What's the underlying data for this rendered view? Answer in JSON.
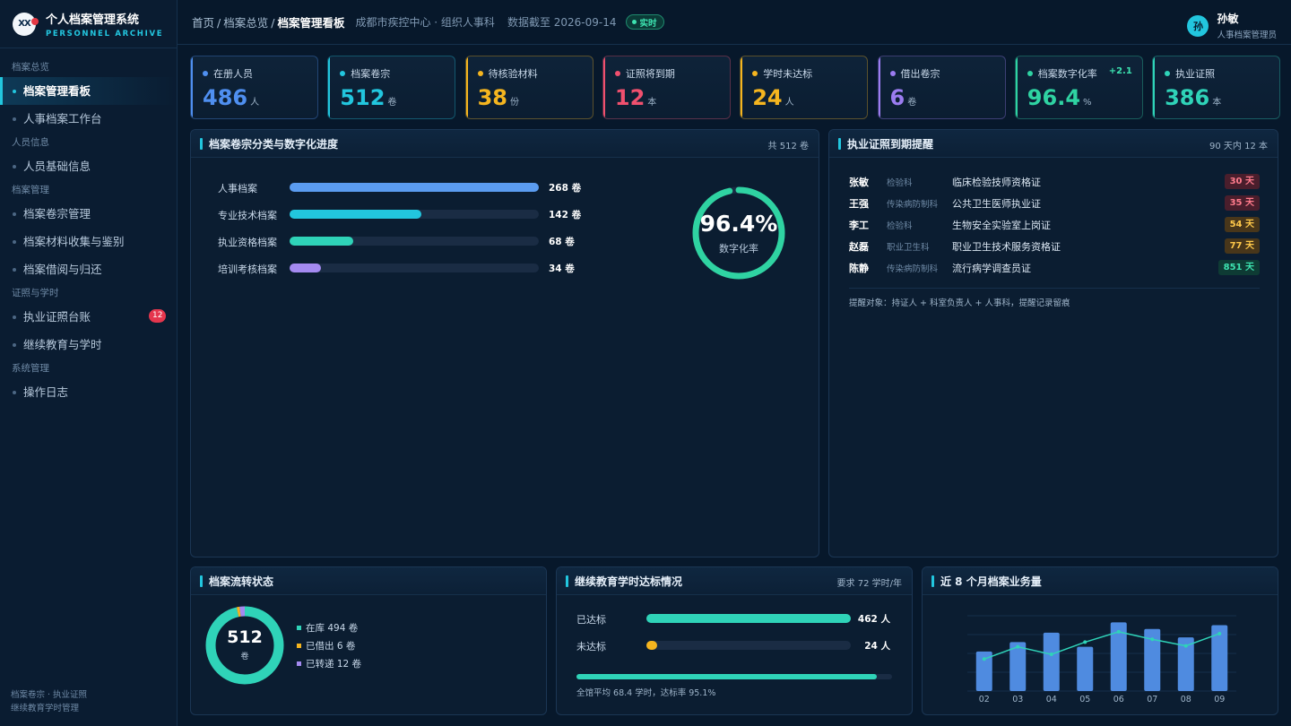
{
  "brand": {
    "title": "个人档案管理系统",
    "subtitle": "PERSONNEL ARCHIVE",
    "logo_text": "XX"
  },
  "nav": {
    "groups": [
      {
        "label": "档案总览",
        "items": [
          {
            "label": "档案管理看板",
            "active": true
          },
          {
            "label": "人事档案工作台"
          }
        ]
      },
      {
        "label": "人员信息",
        "items": [
          {
            "label": "人员基础信息"
          }
        ]
      },
      {
        "label": "档案管理",
        "items": [
          {
            "label": "档案卷宗管理"
          },
          {
            "label": "档案材料收集与鉴别"
          },
          {
            "label": "档案借阅与归还"
          }
        ]
      },
      {
        "label": "证照与学时",
        "items": [
          {
            "label": "执业证照台账",
            "badge": "12"
          },
          {
            "label": "继续教育与学时"
          }
        ]
      },
      {
        "label": "系统管理",
        "items": [
          {
            "label": "操作日志"
          }
        ]
      }
    ],
    "footer_line1": "档案卷宗 · 执业证照",
    "footer_line2": "继续教育学时管理"
  },
  "topbar": {
    "crumb_home": "首页",
    "crumb_mid": "档案总览",
    "crumb_current": "档案管理看板",
    "sep": "/",
    "org": "成都市疾控中心 · 组织人事科",
    "as_of": "数据截至 2026-09-14",
    "live": "实时"
  },
  "user": {
    "avatar": "孙",
    "name": "孙敏",
    "role": "人事档案管理员"
  },
  "kpis": [
    {
      "label": "在册人员",
      "value": "486",
      "unit": "人",
      "color": "#4f8ff0"
    },
    {
      "label": "档案卷宗",
      "value": "512",
      "unit": "卷",
      "color": "#22c6de"
    },
    {
      "label": "待核验材料",
      "value": "38",
      "unit": "份",
      "color": "#f5b51f"
    },
    {
      "label": "证照将到期",
      "value": "12",
      "unit": "本",
      "color": "#f0506e"
    },
    {
      "label": "学时未达标",
      "value": "24",
      "unit": "人",
      "color": "#f5b51f"
    },
    {
      "label": "借出卷宗",
      "value": "6",
      "unit": "卷",
      "color": "#9b7cf0"
    },
    {
      "label": "档案数字化率",
      "value": "96.4",
      "unit": "%",
      "color": "#2fd3a2",
      "delta": "+2.1"
    },
    {
      "label": "执业证照",
      "value": "386",
      "unit": "本",
      "color": "#2fd3b8"
    }
  ],
  "categories_panel": {
    "title": "档案卷宗分类与数字化进度",
    "total": "共 512 卷",
    "items": [
      {
        "name": "人事档案",
        "value": 268,
        "label": "268 卷",
        "color": "#5b9cf0"
      },
      {
        "name": "专业技术档案",
        "value": 142,
        "label": "142 卷",
        "color": "#22c6de"
      },
      {
        "name": "执业资格档案",
        "value": 68,
        "label": "68 卷",
        "color": "#2fd3b8"
      },
      {
        "name": "培训考核档案",
        "value": 34,
        "label": "34 卷",
        "color": "#a48af0"
      }
    ],
    "max": 268,
    "ring_value": 96.4,
    "ring_pct": "96.4%",
    "ring_label": "数字化率"
  },
  "license_panel": {
    "title": "执业证照到期提醒",
    "summary": "90 天内 12 本",
    "rows": [
      {
        "name": "张敏",
        "dept": "检验科",
        "cert": "临床检验技师资格证",
        "days": "30 天",
        "level": "red"
      },
      {
        "name": "王强",
        "dept": "传染病防制科",
        "cert": "公共卫生医师执业证",
        "days": "35 天",
        "level": "red"
      },
      {
        "name": "李工",
        "dept": "检验科",
        "cert": "生物安全实验室上岗证",
        "days": "54 天",
        "level": "amber"
      },
      {
        "name": "赵磊",
        "dept": "职业卫生科",
        "cert": "职业卫生技术服务资格证",
        "days": "77 天",
        "level": "amber"
      },
      {
        "name": "陈静",
        "dept": "传染病防制科",
        "cert": "流行病学调查员证",
        "days": "851 天",
        "level": "green"
      }
    ],
    "note": "提醒对象：持证人 + 科室负责人 + 人事科，提醒记录留痕"
  },
  "flow_panel": {
    "title": "档案流转状态",
    "total": "512",
    "unit": "卷",
    "segments": [
      {
        "label": "在库 494 卷",
        "value": 494,
        "color": "#2fd3b8"
      },
      {
        "label": "已借出 6 卷",
        "value": 6,
        "color": "#f5b51f"
      },
      {
        "label": "已转递 12 卷",
        "value": 12,
        "color": "#a48af0"
      }
    ]
  },
  "ce_panel": {
    "title": "继续教育学时达标情况",
    "requirement": "要求 72 学时/年",
    "rows": [
      {
        "name": "已达标",
        "value": 462,
        "label": "462 人",
        "color": "#2fd3b8"
      },
      {
        "name": "未达标",
        "value": 24,
        "label": "24 人",
        "color": "#f5b51f"
      }
    ],
    "max": 462,
    "rate": 95.1,
    "note": "全馆平均 68.4 学时，达标率 95.1%"
  },
  "biz_panel": {
    "title": "近 8 个月档案业务量",
    "chart_data": {
      "type": "bar",
      "categories": [
        "02",
        "03",
        "04",
        "05",
        "06",
        "07",
        "08",
        "09"
      ],
      "series": [
        {
          "type": "bar",
          "values": [
            42,
            52,
            62,
            47,
            73,
            66,
            57,
            70
          ],
          "color": "#4f8be0"
        },
        {
          "type": "line",
          "values": [
            34,
            47,
            39,
            52,
            63,
            55,
            48,
            61
          ],
          "color": "#2fd3b8"
        }
      ],
      "ylim": [
        0,
        80
      ],
      "grid": true
    }
  }
}
